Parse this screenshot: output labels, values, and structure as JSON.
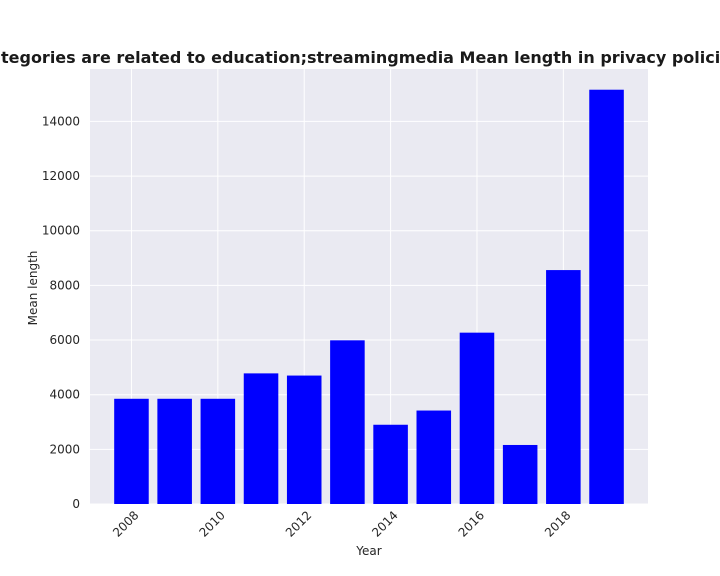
{
  "chart_data": {
    "type": "bar",
    "title": "when categories are related to education;streamingmedia Mean length in privacy policies by Year",
    "xlabel": "Year",
    "ylabel": "Mean length",
    "x": [
      2008,
      2009,
      2010,
      2011,
      2012,
      2013,
      2014,
      2015,
      2016,
      2017,
      2018,
      2019
    ],
    "values": [
      3850,
      3850,
      3850,
      4780,
      4700,
      5990,
      2900,
      3420,
      6270,
      2160,
      8560,
      15160
    ],
    "xticks": [
      2008,
      2010,
      2012,
      2014,
      2016,
      2018
    ],
    "yticks": [
      0,
      2000,
      4000,
      6000,
      8000,
      10000,
      12000,
      14000
    ],
    "xlim": [
      2007.04,
      2019.96
    ],
    "ylim": [
      0,
      15918
    ],
    "grid": true,
    "bar_color": "#0000ff",
    "background_color": "#eaeaf2",
    "grid_color": "#ffffff"
  }
}
